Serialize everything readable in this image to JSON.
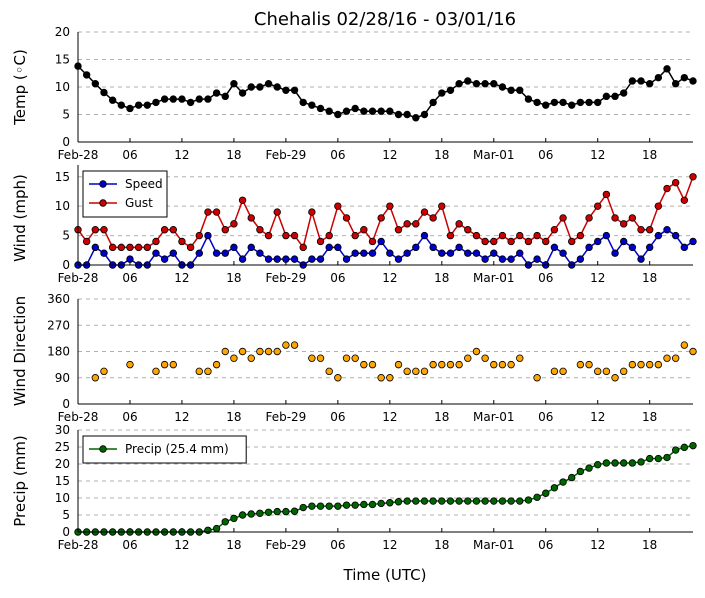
{
  "title": "Chehalis 02/28/16 - 03/01/16",
  "xlabel": "Time (UTC)",
  "xtick_labels": [
    "Feb-28",
    "06",
    "12",
    "18",
    "Feb-29",
    "06",
    "12",
    "18",
    "Mar-01",
    "06",
    "12",
    "18"
  ],
  "chart_data": [
    {
      "type": "line",
      "ylabel": "Temp (◦C)",
      "ylim": [
        0,
        20
      ],
      "yticks": [
        0,
        5,
        10,
        15,
        20
      ],
      "grid": true,
      "series": [
        {
          "color": "#000000",
          "values": [
            13.8,
            12.2,
            10.6,
            9.0,
            7.6,
            6.7,
            6.1,
            6.7,
            6.7,
            7.2,
            7.8,
            7.8,
            7.8,
            7.2,
            7.8,
            7.8,
            8.9,
            8.3,
            10.6,
            8.9,
            10.0,
            10.0,
            10.6,
            10.0,
            9.4,
            9.4,
            7.2,
            6.7,
            6.1,
            5.6,
            5.0,
            5.6,
            6.1,
            5.6,
            5.6,
            5.6,
            5.6,
            5.0,
            5.0,
            4.4,
            5.0,
            7.2,
            8.9,
            9.4,
            10.6,
            11.1,
            10.6,
            10.6,
            10.6,
            10.0,
            9.4,
            9.4,
            7.8,
            7.2,
            6.7,
            7.2,
            7.2,
            6.7,
            7.2,
            7.2,
            7.2,
            8.3,
            8.3,
            8.9,
            11.1,
            11.1,
            10.6,
            11.7,
            13.3,
            10.6,
            11.7,
            11.1
          ]
        }
      ]
    },
    {
      "type": "line",
      "ylabel": "Wind (mph)",
      "ylim": [
        0,
        17
      ],
      "yticks": [
        0,
        5,
        10,
        15
      ],
      "grid": true,
      "legend": "top-left",
      "series": [
        {
          "name": "Speed",
          "color": "#0000cc",
          "values": [
            0,
            0,
            3,
            2,
            0,
            0,
            1,
            0,
            0,
            2,
            1,
            2,
            0,
            0,
            2,
            5,
            2,
            2,
            3,
            1,
            3,
            2,
            1,
            1,
            1,
            1,
            0,
            1,
            1,
            3,
            3,
            1,
            2,
            2,
            2,
            4,
            2,
            1,
            2,
            3,
            5,
            3,
            2,
            2,
            3,
            2,
            2,
            1,
            2,
            1,
            1,
            2,
            0,
            1,
            0,
            3,
            2,
            0,
            1,
            3,
            4,
            5,
            2,
            4,
            3,
            1,
            3,
            5,
            6,
            5,
            3,
            4
          ]
        },
        {
          "name": "Gust",
          "color": "#cc0000",
          "values": [
            6,
            4,
            6,
            6,
            3,
            3,
            3,
            3,
            3,
            4,
            6,
            6,
            4,
            3,
            5,
            9,
            9,
            6,
            7,
            11,
            8,
            6,
            5,
            9,
            5,
            5,
            3,
            9,
            4,
            5,
            10,
            8,
            5,
            6,
            4,
            8,
            10,
            6,
            7,
            7,
            9,
            8,
            10,
            5,
            7,
            6,
            5,
            4,
            4,
            5,
            4,
            5,
            4,
            5,
            4,
            6,
            8,
            4,
            5,
            8,
            10,
            12,
            8,
            7,
            8,
            6,
            6,
            10,
            13,
            14,
            11,
            15
          ]
        }
      ]
    },
    {
      "type": "scatter",
      "ylabel": "Wind Direction",
      "ylim": [
        0,
        360
      ],
      "yticks": [
        0,
        90,
        180,
        270,
        360
      ],
      "grid": true,
      "series": [
        {
          "color": "#ffa500",
          "values": [
            null,
            null,
            90,
            112,
            null,
            null,
            135,
            null,
            null,
            112,
            135,
            135,
            null,
            null,
            112,
            112,
            135,
            180,
            157,
            180,
            157,
            180,
            180,
            180,
            202,
            202,
            null,
            157,
            157,
            112,
            90,
            157,
            157,
            135,
            135,
            90,
            90,
            135,
            112,
            112,
            112,
            135,
            135,
            135,
            135,
            157,
            180,
            157,
            135,
            135,
            135,
            157,
            null,
            90,
            null,
            112,
            112,
            null,
            135,
            135,
            112,
            112,
            90,
            112,
            135,
            135,
            135,
            135,
            157,
            157,
            202,
            180
          ]
        }
      ]
    },
    {
      "type": "line",
      "ylabel": "Precip (mm)",
      "ylim": [
        0,
        30
      ],
      "yticks": [
        0,
        5,
        10,
        15,
        20,
        25,
        30
      ],
      "grid": true,
      "legend": "top-left",
      "series": [
        {
          "name": "Precip (25.4 mm)",
          "color": "#006400",
          "values": [
            0,
            0,
            0,
            0,
            0,
            0,
            0,
            0,
            0,
            0,
            0,
            0,
            0,
            0,
            0,
            0.5,
            1.0,
            3.0,
            4.0,
            5.0,
            5.3,
            5.5,
            5.8,
            6.0,
            6.0,
            6.1,
            7.2,
            7.6,
            7.6,
            7.6,
            7.6,
            7.9,
            7.9,
            8.1,
            8.1,
            8.4,
            8.6,
            8.9,
            9.1,
            9.1,
            9.1,
            9.1,
            9.1,
            9.1,
            9.1,
            9.1,
            9.1,
            9.1,
            9.1,
            9.1,
            9.1,
            9.1,
            9.4,
            10.2,
            11.4,
            13.0,
            14.7,
            16.0,
            17.8,
            18.8,
            19.8,
            20.3,
            20.3,
            20.3,
            20.3,
            20.6,
            21.6,
            21.6,
            21.9,
            24.1,
            24.9,
            25.4
          ]
        }
      ]
    }
  ]
}
